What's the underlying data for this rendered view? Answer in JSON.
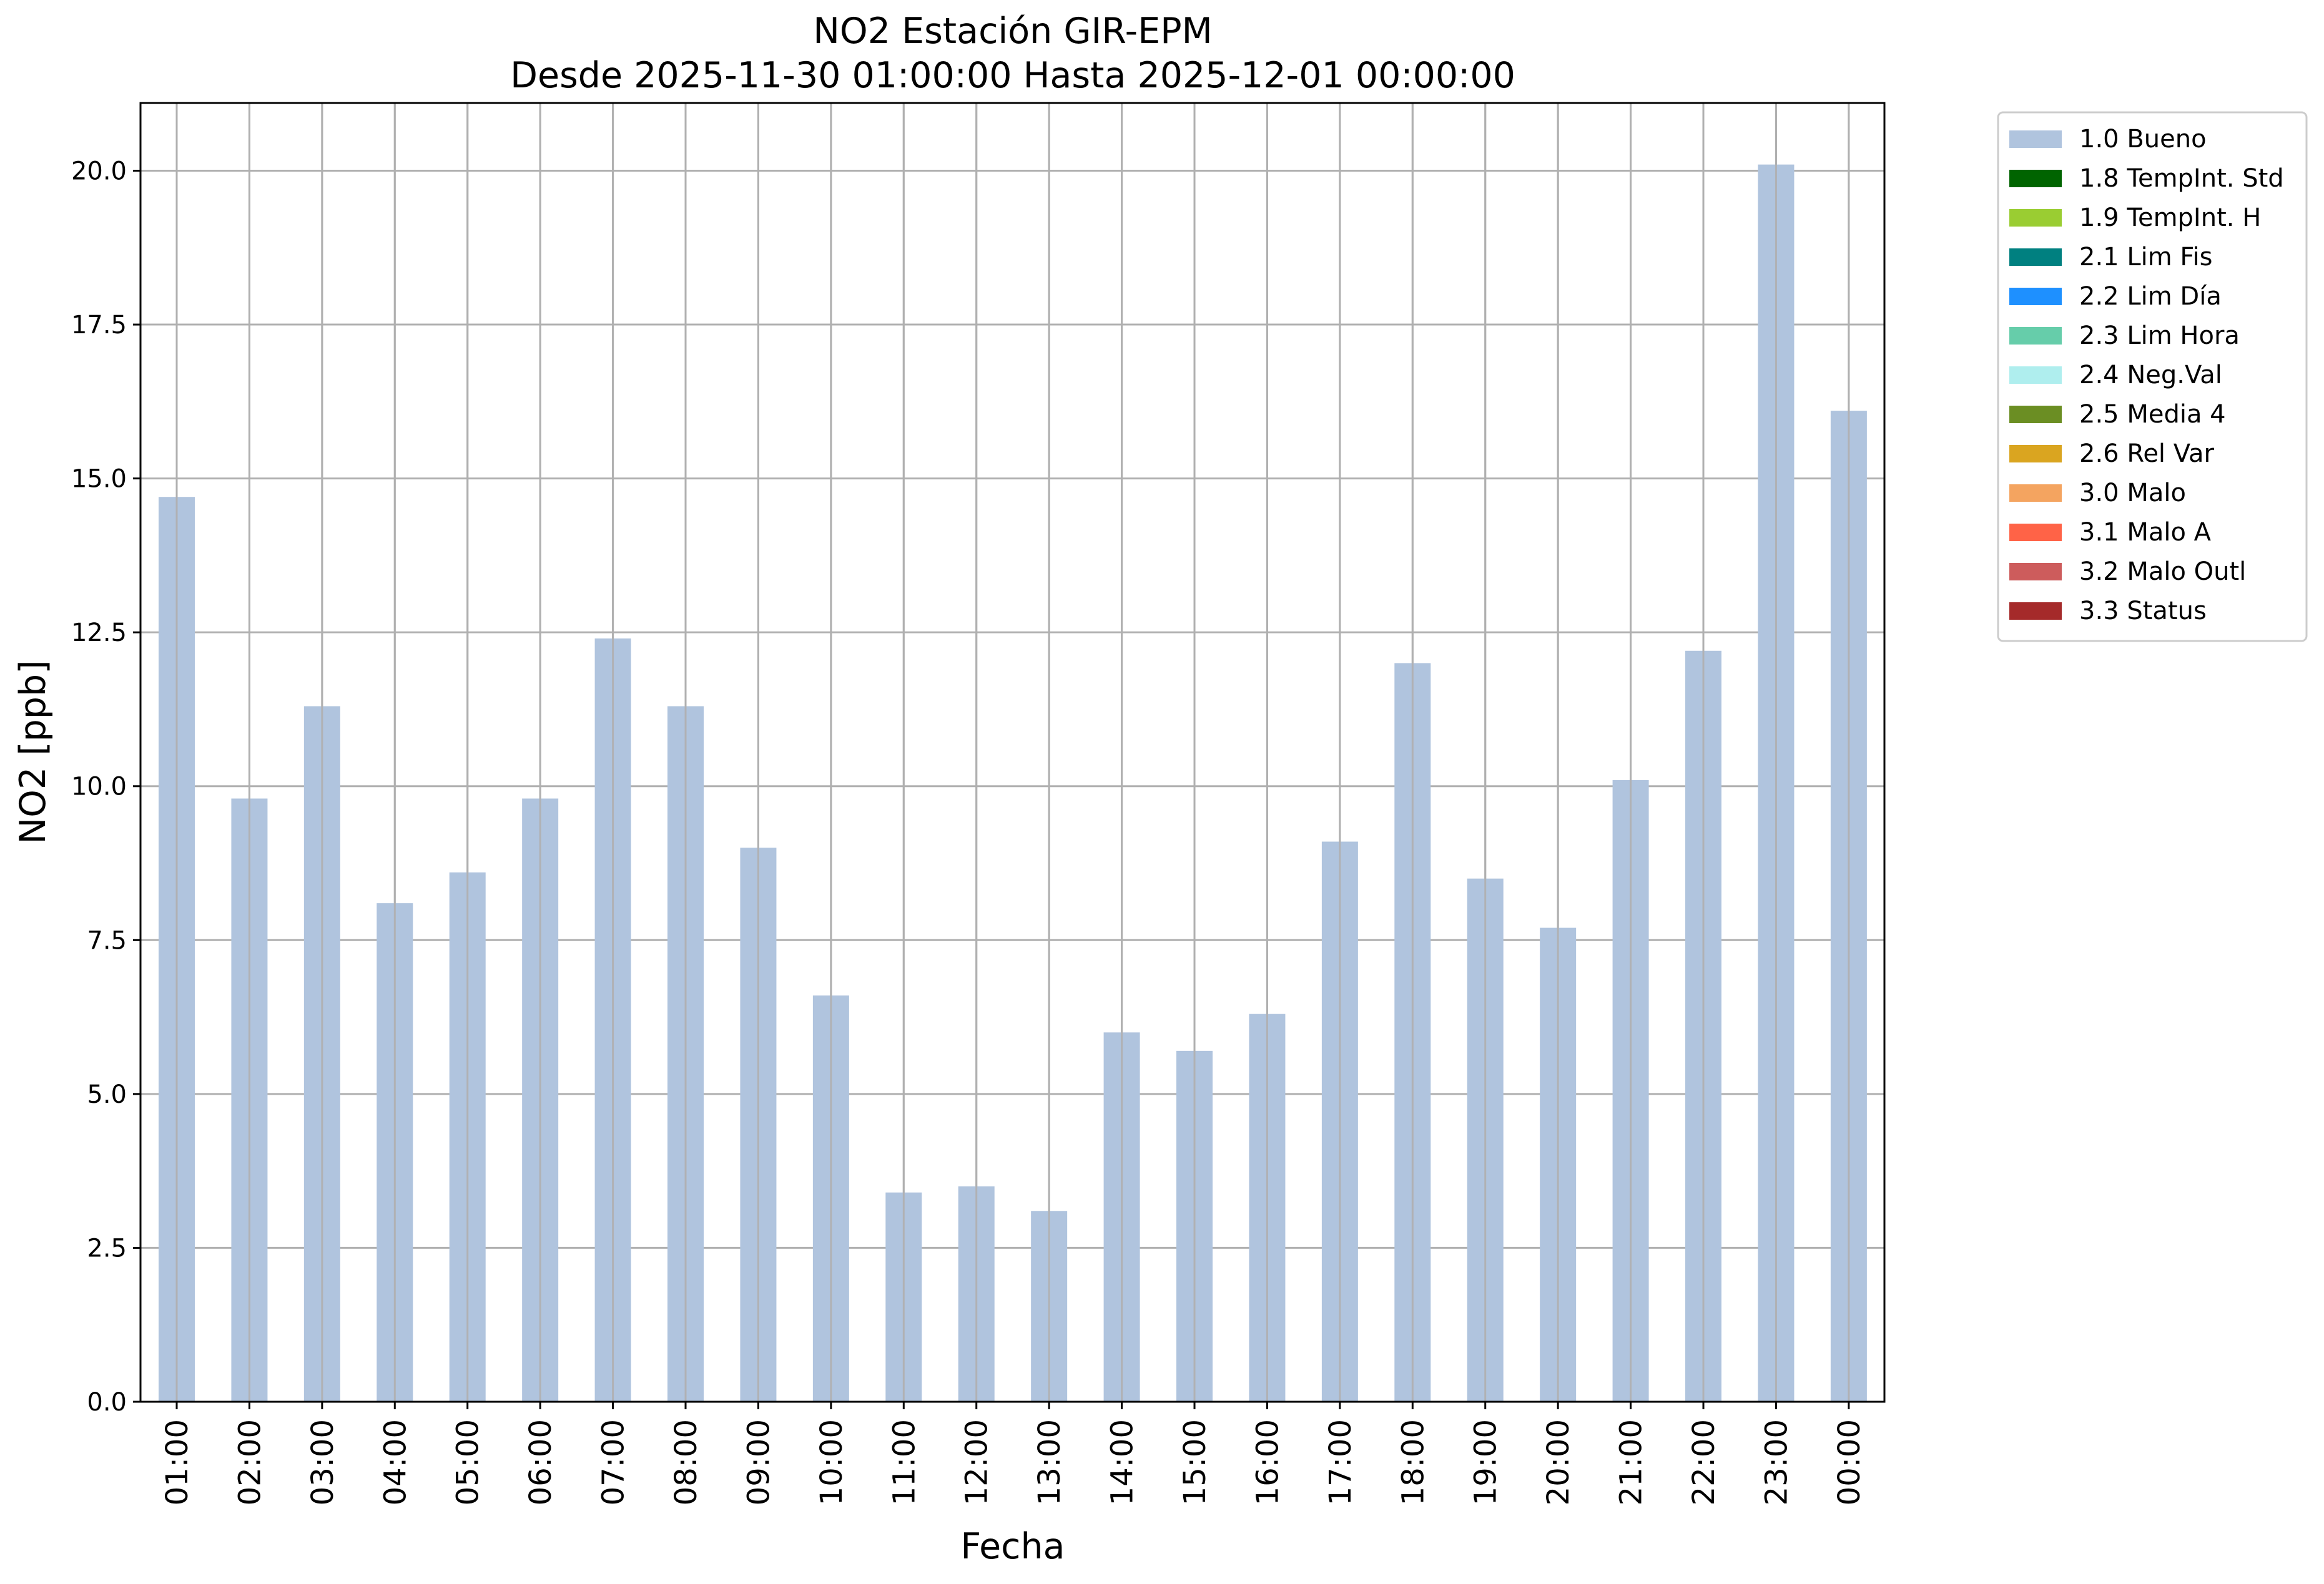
{
  "chart_data": {
    "type": "bar",
    "title": "NO2 Estación GIR-EPM",
    "subtitle": "Desde 2025-11-30 01:00:00 Hasta 2025-12-01 00:00:00",
    "xlabel": "Fecha",
    "ylabel": "NO2 [ppb]",
    "ylim": [
      0,
      21.1
    ],
    "yticks": [
      "0.0",
      "2.5",
      "5.0",
      "7.5",
      "10.0",
      "12.5",
      "15.0",
      "17.5",
      "20.0"
    ],
    "grid": true,
    "legend_position": "outside-right",
    "categories": [
      "01:00",
      "02:00",
      "03:00",
      "04:00",
      "05:00",
      "06:00",
      "07:00",
      "08:00",
      "09:00",
      "10:00",
      "11:00",
      "12:00",
      "13:00",
      "14:00",
      "15:00",
      "16:00",
      "17:00",
      "18:00",
      "19:00",
      "20:00",
      "21:00",
      "22:00",
      "23:00",
      "00:00"
    ],
    "series": [
      {
        "name": "1.0 Bueno",
        "color": "#b0c4de",
        "values": [
          14.7,
          9.8,
          11.3,
          8.1,
          8.6,
          9.8,
          12.4,
          11.3,
          9.0,
          6.6,
          3.4,
          3.5,
          3.1,
          6.0,
          5.7,
          6.3,
          9.1,
          12.0,
          8.5,
          7.7,
          10.1,
          12.2,
          20.1,
          16.1
        ]
      }
    ],
    "legend": [
      {
        "label": "1.0 Bueno",
        "color": "#b0c4de"
      },
      {
        "label": "1.8 TempInt. Std",
        "color": "#006400"
      },
      {
        "label": "1.9 TempInt. H",
        "color": "#9acd32"
      },
      {
        "label": "2.1 Lim Fis",
        "color": "#008080"
      },
      {
        "label": "2.2 Lim Día",
        "color": "#1e90ff"
      },
      {
        "label": "2.3 Lim Hora",
        "color": "#66cdaa"
      },
      {
        "label": "2.4 Neg.Val",
        "color": "#afeeee"
      },
      {
        "label": "2.5 Media 4",
        "color": "#6b8e23"
      },
      {
        "label": "2.6 Rel Var",
        "color": "#daa520"
      },
      {
        "label": "3.0 Malo",
        "color": "#f4a460"
      },
      {
        "label": "3.1 Malo A",
        "color": "#ff6347"
      },
      {
        "label": "3.2 Malo Outl",
        "color": "#cd5c5c"
      },
      {
        "label": "3.3 Status",
        "color": "#a52a2a"
      }
    ]
  }
}
